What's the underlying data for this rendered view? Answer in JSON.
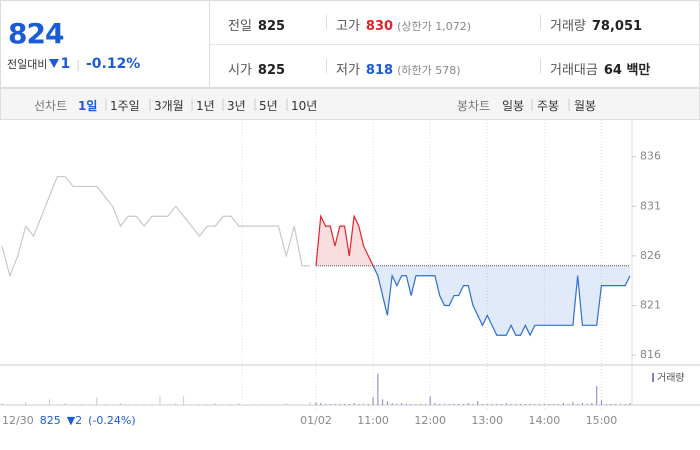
{
  "quote": {
    "price": "824",
    "change_label": "전일대비",
    "change": "1",
    "change_pct": "-0.12%"
  },
  "summary": [
    [
      {
        "label": "전일",
        "value": "825"
      },
      {
        "label": "고가",
        "value": "830",
        "note": "(상한가 1,072)"
      },
      {
        "label": "거래량",
        "value": "78,051"
      }
    ],
    [
      {
        "label": "시가",
        "value": "825"
      },
      {
        "label": "저가",
        "value": "818",
        "note": "(하한가 578)"
      },
      {
        "label": "거래대금",
        "value": "64 백만"
      }
    ]
  ],
  "tabs": {
    "line_label": "선차트",
    "periods": [
      "1일",
      "1주일",
      "3개월",
      "1년",
      "3년",
      "5년",
      "10년"
    ],
    "active": 0,
    "candle_label": "봉차트",
    "candles": [
      "일봉",
      "주봉",
      "월봉"
    ]
  },
  "chart_data": {
    "type": "line",
    "prev_day": {
      "date": "12/30",
      "close": "825",
      "change": "▼2",
      "pct": "(-0.24%)",
      "values": [
        827,
        824,
        826,
        829,
        828,
        830,
        832,
        834,
        834,
        833,
        833,
        833,
        833,
        832,
        831,
        829,
        830,
        830,
        829,
        830,
        830,
        830,
        831,
        830,
        829,
        828,
        829,
        829,
        830,
        830,
        829,
        829,
        829,
        829,
        829,
        829,
        826,
        829,
        825,
        825
      ],
      "color": "#c8c8c8"
    },
    "base": 825,
    "x": [
      600,
      605,
      610,
      615,
      620,
      625,
      630,
      635,
      640,
      645,
      650,
      655,
      660,
      665,
      670,
      675,
      680,
      685,
      690,
      695,
      700,
      705,
      710,
      715,
      720,
      725,
      730,
      735,
      740,
      745,
      750,
      755,
      760,
      765,
      770,
      775,
      780,
      785,
      790,
      795,
      800,
      805,
      810,
      815,
      820,
      825,
      830,
      835,
      840,
      845,
      850,
      855,
      860,
      865,
      870,
      875,
      880,
      885,
      890,
      895,
      900,
      905,
      910,
      915,
      920,
      925,
      930
    ],
    "values": [
      825,
      830,
      829,
      829,
      827,
      829,
      829,
      826,
      830,
      829,
      827,
      826,
      825,
      824,
      822,
      820,
      824,
      823,
      824,
      824,
      822,
      824,
      824,
      824,
      824,
      824,
      822,
      821,
      821,
      822,
      822,
      823,
      823,
      821,
      820,
      819,
      820,
      819,
      818,
      818,
      818,
      819,
      818,
      818,
      819,
      818,
      819,
      819,
      819,
      819,
      819,
      819,
      819,
      819,
      819,
      824,
      819,
      819,
      819,
      819,
      823,
      823,
      823,
      823,
      823,
      823,
      824
    ],
    "up_color": "#e0242b",
    "down_color": "#2f6fd0",
    "xlim": [
      600,
      930
    ],
    "xticks": [
      {
        "value": 600,
        "label": "01/02"
      },
      {
        "value": 660,
        "label": "11:00"
      },
      {
        "value": 720,
        "label": "12:00"
      },
      {
        "value": 780,
        "label": "13:00"
      },
      {
        "value": 840,
        "label": "14:00"
      },
      {
        "value": 900,
        "label": "15:00"
      }
    ],
    "ylim": [
      815,
      839.7
    ],
    "yticks": [
      816,
      821,
      826,
      831,
      836
    ],
    "volume_label": "거래량",
    "volume_color": "#8a7fc4",
    "vlim": [
      0,
      40
    ],
    "volume": [
      3,
      2,
      1,
      1,
      1,
      1,
      1,
      1,
      2,
      1,
      1,
      1,
      8,
      33,
      6,
      4,
      2,
      1,
      2,
      1,
      1,
      1,
      1,
      1,
      9,
      2,
      1,
      1,
      1,
      1,
      1,
      1,
      2,
      1,
      4,
      1,
      1,
      1,
      1,
      1,
      2,
      1,
      1,
      1,
      1,
      1,
      1,
      1,
      1,
      1,
      1,
      1,
      2,
      1,
      3,
      1,
      2,
      1,
      2,
      20,
      5,
      1,
      1,
      1,
      1,
      1,
      2
    ],
    "prev_volume": [
      2,
      1,
      1,
      3,
      1,
      1,
      6,
      1,
      2,
      1,
      1,
      1,
      8,
      1,
      1,
      2,
      1,
      1,
      1,
      1,
      10,
      1,
      2,
      9,
      1,
      1,
      1,
      2,
      1,
      1,
      2,
      1,
      1,
      1,
      1,
      1,
      2,
      1,
      1,
      3
    ]
  }
}
